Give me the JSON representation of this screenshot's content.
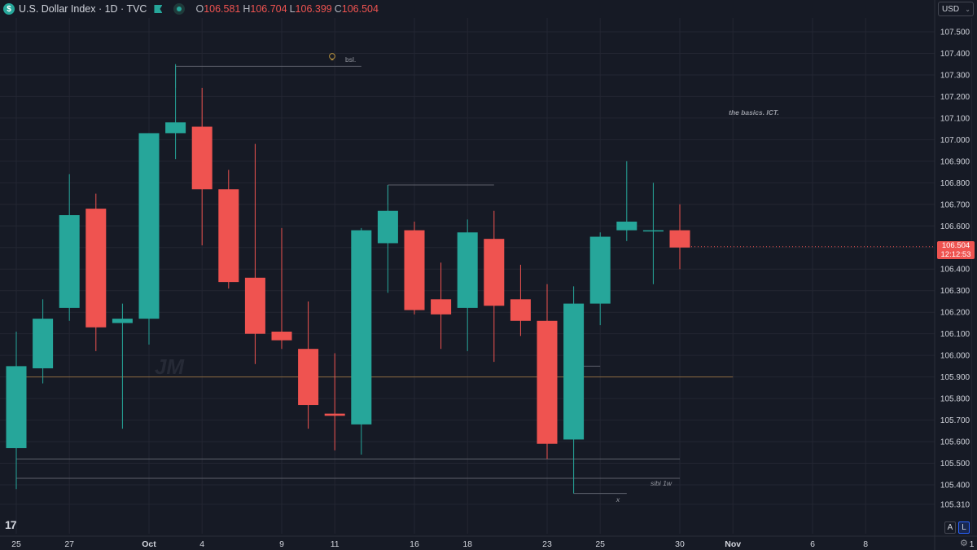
{
  "header": {
    "logo_glyph": "$",
    "symbol_title": "U.S. Dollar Index · 1D · TVC",
    "open_label": "O",
    "open": "106.581",
    "high_label": "H",
    "high": "106.704",
    "low_label": "L",
    "low": "106.399",
    "close_label": "C",
    "close": "106.504"
  },
  "currency_button": {
    "label": "USD",
    "chevron": "⌄"
  },
  "last_price": {
    "price": "106.504",
    "countdown": "12:12:53"
  },
  "watermark": "JM",
  "annotations": {
    "bsl": "bsl.",
    "basics": "the basics. ICT.",
    "sibi": "sibi 1w",
    "x": "x"
  },
  "tv_logo": "17",
  "bottom_buttons": {
    "auto": "A",
    "log": "L",
    "settings_glyph": "⚙"
  },
  "colors": {
    "up": "#26a69a",
    "down": "#ef5350",
    "background": "#161a25",
    "grid": "#232632"
  },
  "chart_data": {
    "type": "candlestick",
    "y_axis_ticks": [
      "107.500",
      "107.400",
      "107.300",
      "107.200",
      "107.100",
      "107.000",
      "106.900",
      "106.800",
      "106.700",
      "106.600",
      "106.500",
      "106.400",
      "106.300",
      "106.200",
      "106.100",
      "106.000",
      "105.900",
      "105.800",
      "105.700",
      "105.600",
      "105.500",
      "105.400",
      "105.310"
    ],
    "x_axis_ticks": [
      {
        "label": "25",
        "idx": 0
      },
      {
        "label": "27",
        "idx": 2
      },
      {
        "label": "Oct",
        "idx": 5
      },
      {
        "label": "4",
        "idx": 7
      },
      {
        "label": "9",
        "idx": 10
      },
      {
        "label": "11",
        "idx": 12
      },
      {
        "label": "16",
        "idx": 15
      },
      {
        "label": "18",
        "idx": 17
      },
      {
        "label": "23",
        "idx": 20
      },
      {
        "label": "25",
        "idx": 22
      },
      {
        "label": "30",
        "idx": 25
      },
      {
        "label": "Nov",
        "idx": 27
      },
      {
        "label": "6",
        "idx": 30
      },
      {
        "label": "8",
        "idx": 32
      },
      {
        "label": "1",
        "idx": 36
      }
    ],
    "ylim": [
      105.31,
      107.54
    ],
    "grid": true,
    "candles": [
      {
        "o": 105.57,
        "h": 106.11,
        "l": 105.38,
        "c": 105.95
      },
      {
        "o": 105.94,
        "h": 106.26,
        "l": 105.87,
        "c": 106.17
      },
      {
        "o": 106.22,
        "h": 106.84,
        "l": 106.16,
        "c": 106.65
      },
      {
        "o": 106.68,
        "h": 106.75,
        "l": 106.02,
        "c": 106.13
      },
      {
        "o": 106.15,
        "h": 106.24,
        "l": 105.66,
        "c": 106.17
      },
      {
        "o": 106.17,
        "h": 107.03,
        "l": 106.05,
        "c": 107.03
      },
      {
        "o": 107.03,
        "h": 107.35,
        "l": 106.91,
        "c": 107.08
      },
      {
        "o": 107.06,
        "h": 107.24,
        "l": 106.51,
        "c": 106.77
      },
      {
        "o": 106.77,
        "h": 106.86,
        "l": 106.31,
        "c": 106.34
      },
      {
        "o": 106.36,
        "h": 106.98,
        "l": 105.96,
        "c": 106.1
      },
      {
        "o": 106.11,
        "h": 106.59,
        "l": 106.03,
        "c": 106.07
      },
      {
        "o": 106.03,
        "h": 106.25,
        "l": 105.66,
        "c": 105.77
      },
      {
        "o": 105.73,
        "h": 106.01,
        "l": 105.56,
        "c": 105.72
      },
      {
        "o": 105.68,
        "h": 106.59,
        "l": 105.54,
        "c": 106.58
      },
      {
        "o": 106.52,
        "h": 106.79,
        "l": 106.29,
        "c": 106.67
      },
      {
        "o": 106.58,
        "h": 106.62,
        "l": 106.19,
        "c": 106.21
      },
      {
        "o": 106.26,
        "h": 106.43,
        "l": 106.03,
        "c": 106.19
      },
      {
        "o": 106.22,
        "h": 106.63,
        "l": 106.02,
        "c": 106.57
      },
      {
        "o": 106.54,
        "h": 106.67,
        "l": 105.97,
        "c": 106.23
      },
      {
        "o": 106.26,
        "h": 106.42,
        "l": 106.09,
        "c": 106.16
      },
      {
        "o": 106.16,
        "h": 106.33,
        "l": 105.52,
        "c": 105.59
      },
      {
        "o": 105.61,
        "h": 106.32,
        "l": 105.36,
        "c": 106.24
      },
      {
        "o": 106.24,
        "h": 106.57,
        "l": 106.14,
        "c": 106.55
      },
      {
        "o": 106.58,
        "h": 106.9,
        "l": 106.53,
        "c": 106.62
      },
      {
        "o": 106.58,
        "h": 106.8,
        "l": 106.33,
        "c": 106.58
      },
      {
        "o": 106.58,
        "h": 106.7,
        "l": 106.4,
        "c": 106.5
      }
    ],
    "horizontal_lines": [
      {
        "y": 105.9,
        "x1": 0,
        "x2": 27,
        "color": "#8a6a40",
        "name": "level-line"
      },
      {
        "y": 107.34,
        "x1": 6,
        "x2": 13,
        "color": "#5d606b",
        "name": "bsl-line"
      },
      {
        "y": 106.79,
        "x1": 14,
        "x2": 18,
        "color": "#5d606b",
        "name": "high-ray"
      },
      {
        "y": 105.52,
        "x1": 0,
        "x2": 25,
        "color": "#5d606b",
        "name": "low-ray"
      },
      {
        "y": 105.43,
        "x1": 0,
        "x2": 25,
        "color": "#5d606b",
        "name": "sibi-line"
      },
      {
        "y": 105.95,
        "x1": 21,
        "x2": 22,
        "color": "#5d606b",
        "name": "short-ray"
      },
      {
        "y": 105.36,
        "x1": 21,
        "x2": 23,
        "color": "#5d606b",
        "name": "x-line"
      }
    ]
  }
}
